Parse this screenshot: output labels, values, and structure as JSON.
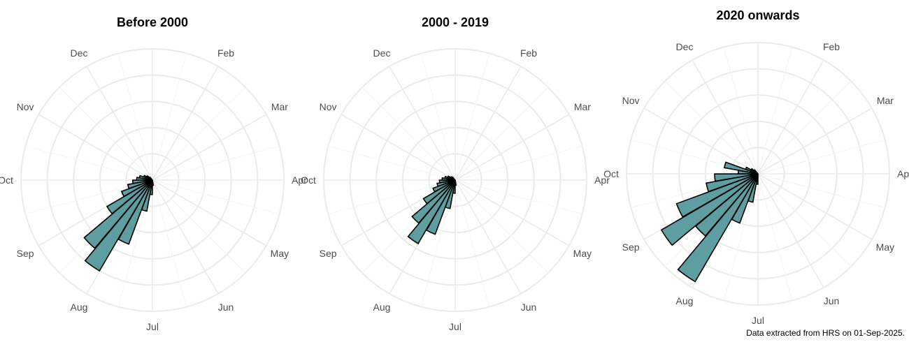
{
  "chart_data": [
    {
      "type": "polar-bar",
      "title": "Before 2000",
      "month_labels": [
        "Dec",
        "Feb",
        "Mar",
        "Apr",
        "May",
        "Jun",
        "Jul",
        "Aug",
        "Sep",
        "Oct",
        "Nov"
      ],
      "bar_directions_deg": [
        85,
        95,
        105,
        115,
        125,
        135,
        145,
        155,
        165,
        175,
        185,
        195,
        205,
        215,
        225
      ],
      "bar_values": [
        4,
        11,
        24,
        52,
        80,
        68,
        40,
        25,
        19,
        15,
        12,
        10,
        7,
        5,
        3
      ],
      "rmax": 100,
      "grid": true,
      "bar_color": "#5f9ea0"
    },
    {
      "type": "polar-bar",
      "title": "2000 - 2019",
      "month_labels": [
        "Dec",
        "Feb",
        "Mar",
        "Apr",
        "May",
        "Jun",
        "Jul",
        "Aug",
        "Sep",
        "Oct",
        "Nov"
      ],
      "bar_directions_deg": [
        85,
        95,
        105,
        115,
        125,
        135,
        145,
        155,
        165,
        175,
        185,
        195,
        205,
        215,
        225
      ],
      "bar_values": [
        4,
        10,
        22,
        44,
        56,
        43,
        28,
        18,
        14,
        12,
        10,
        8,
        6,
        4,
        3
      ],
      "rmax": 100,
      "grid": true,
      "bar_color": "#5f9ea0"
    },
    {
      "type": "polar-bar",
      "title": "2020 onwards",
      "month_labels": [
        "Dec",
        "Feb",
        "Mar",
        "Apr",
        "May",
        "Jun",
        "Jul",
        "Aug",
        "Sep",
        "Oct",
        "Nov"
      ],
      "bar_directions_deg": [
        95,
        105,
        115,
        125,
        135,
        145,
        155,
        165,
        175,
        185,
        195,
        205,
        215,
        225
      ],
      "bar_values": [
        8,
        22,
        40,
        95,
        62,
        85,
        66,
        40,
        33,
        15,
        26,
        10,
        6,
        4
      ],
      "rmax": 100,
      "grid": true,
      "bar_color": "#5f9ea0"
    }
  ],
  "caption": "Data extracted from HRS on 01-Sep-2025."
}
